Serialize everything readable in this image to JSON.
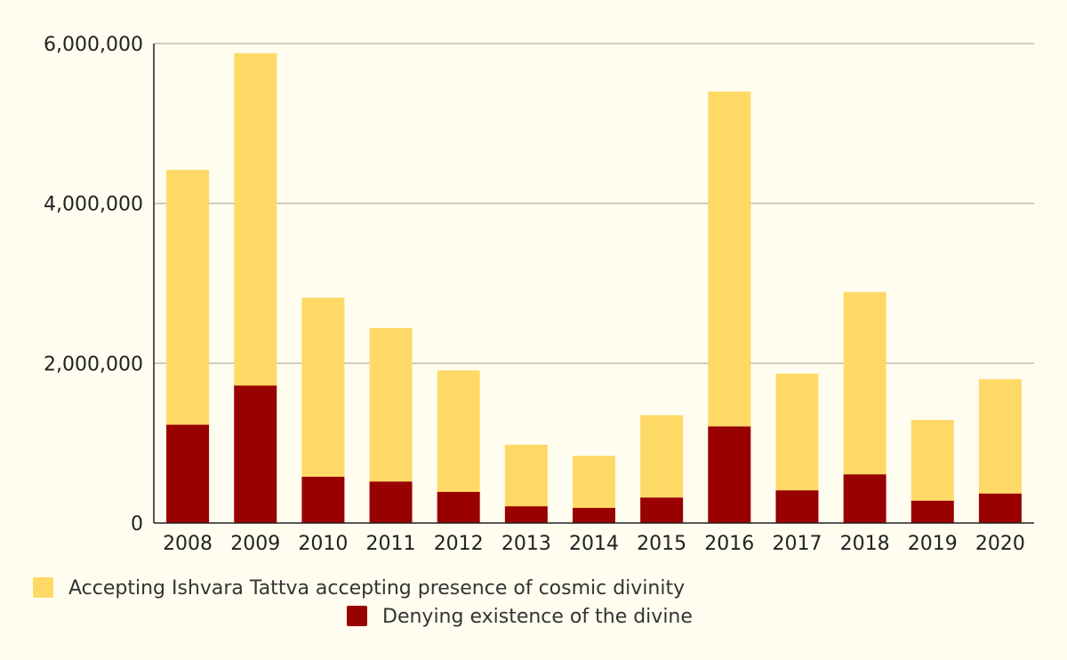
{
  "chart_data": {
    "type": "bar",
    "stacked": true,
    "categories": [
      "2008",
      "2009",
      "2010",
      "2011",
      "2012",
      "2013",
      "2014",
      "2015",
      "2016",
      "2017",
      "2018",
      "2019",
      "2020"
    ],
    "series": [
      {
        "name": "Denying existence of the divine",
        "color": "#990000",
        "values": [
          1230000,
          1720000,
          580000,
          520000,
          390000,
          210000,
          190000,
          320000,
          1210000,
          410000,
          610000,
          280000,
          370000
        ]
      },
      {
        "name": "Accepting Ishvara Tattva accepting presence of cosmic divinity",
        "color": "#ffd966",
        "values": [
          3190000,
          4160000,
          2240000,
          1920000,
          1520000,
          770000,
          650000,
          1030000,
          4190000,
          1460000,
          2280000,
          1010000,
          1430000
        ]
      }
    ],
    "legend_order": [
      1,
      0
    ],
    "ylim": [
      0,
      6000000
    ],
    "yticks": [
      0,
      2000000,
      4000000,
      6000000
    ],
    "ytick_labels": [
      "0",
      "2,000,000",
      "4,000,000",
      "6,000,000"
    ],
    "grid": true,
    "legend_position": "bottom"
  }
}
